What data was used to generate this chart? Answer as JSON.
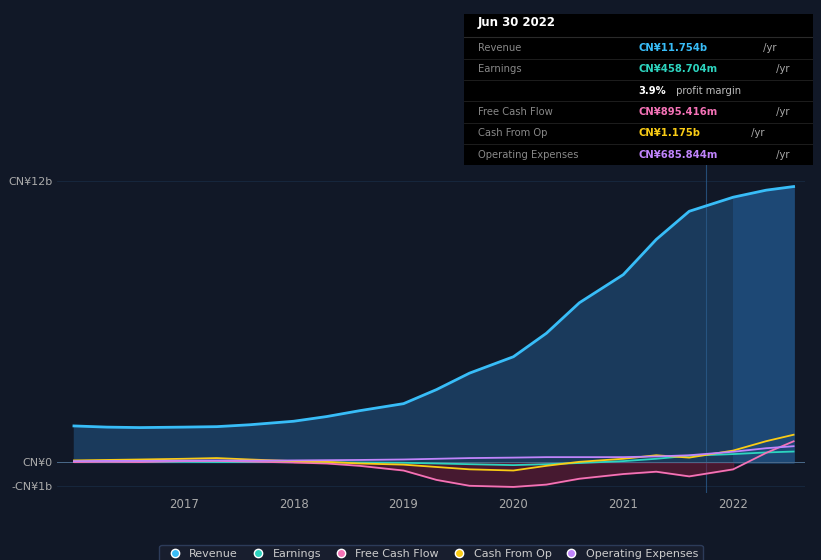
{
  "bg_color": "#111827",
  "plot_bg_color": "#111827",
  "ylim": [
    -1300000000.0,
    13500000000.0
  ],
  "xlabel_ticks": [
    2017,
    2018,
    2019,
    2020,
    2021,
    2022
  ],
  "line_colors": {
    "Revenue": "#38bdf8",
    "Earnings": "#2dd4bf",
    "Free Cash Flow": "#f472b6",
    "Cash From Op": "#facc15",
    "Operating Expenses": "#c084fc"
  },
  "legend_items": [
    {
      "label": "Revenue",
      "color": "#38bdf8"
    },
    {
      "label": "Earnings",
      "color": "#2dd4bf"
    },
    {
      "label": "Free Cash Flow",
      "color": "#f472b6"
    },
    {
      "label": "Cash From Op",
      "color": "#facc15"
    },
    {
      "label": "Operating Expenses",
      "color": "#c084fc"
    }
  ],
  "revenue_x": [
    2016.0,
    2016.3,
    2016.6,
    2017.0,
    2017.3,
    2017.6,
    2018.0,
    2018.3,
    2018.6,
    2019.0,
    2019.3,
    2019.6,
    2020.0,
    2020.3,
    2020.6,
    2021.0,
    2021.3,
    2021.6,
    2022.0,
    2022.3,
    2022.55
  ],
  "revenue_y": [
    1550000000.0,
    1500000000.0,
    1480000000.0,
    1500000000.0,
    1520000000.0,
    1600000000.0,
    1750000000.0,
    1950000000.0,
    2200000000.0,
    2500000000.0,
    3100000000.0,
    3800000000.0,
    4500000000.0,
    5500000000.0,
    6800000000.0,
    8000000000.0,
    9500000000.0,
    10700000000.0,
    11300000000.0,
    11600000000.0,
    11754000000.0
  ],
  "earnings_x": [
    2016.0,
    2016.3,
    2016.6,
    2017.0,
    2017.3,
    2017.6,
    2018.0,
    2018.3,
    2018.6,
    2019.0,
    2019.3,
    2019.6,
    2020.0,
    2020.3,
    2020.6,
    2021.0,
    2021.3,
    2021.6,
    2022.0,
    2022.3,
    2022.55
  ],
  "earnings_y": [
    30000000.0,
    20000000.0,
    20000000.0,
    20000000.0,
    10000000.0,
    10000000.0,
    20000000.0,
    0.0,
    -10000000.0,
    -20000000.0,
    -50000000.0,
    -80000000.0,
    -120000000.0,
    -80000000.0,
    -30000000.0,
    50000000.0,
    150000000.0,
    280000000.0,
    350000000.0,
    420000000.0,
    458700000.0
  ],
  "fcf_x": [
    2016.0,
    2016.3,
    2016.6,
    2017.0,
    2017.3,
    2017.6,
    2018.0,
    2018.3,
    2018.6,
    2019.0,
    2019.3,
    2019.6,
    2020.0,
    2020.3,
    2020.6,
    2021.0,
    2021.3,
    2021.6,
    2022.0,
    2022.3,
    2022.55
  ],
  "fcf_y": [
    10000000.0,
    20000000.0,
    10000000.0,
    50000000.0,
    60000000.0,
    30000000.0,
    -10000000.0,
    -50000000.0,
    -150000000.0,
    -350000000.0,
    -750000000.0,
    -1000000000.0,
    -1050000000.0,
    -950000000.0,
    -700000000.0,
    -500000000.0,
    -400000000.0,
    -600000000.0,
    -300000000.0,
    400000000.0,
    895000000.0
  ],
  "cashfromop_x": [
    2016.0,
    2016.3,
    2016.6,
    2017.0,
    2017.3,
    2017.6,
    2018.0,
    2018.3,
    2018.6,
    2019.0,
    2019.3,
    2019.6,
    2020.0,
    2020.3,
    2020.6,
    2021.0,
    2021.3,
    2021.6,
    2022.0,
    2022.3,
    2022.55
  ],
  "cashfromop_y": [
    80000000.0,
    100000000.0,
    120000000.0,
    150000000.0,
    180000000.0,
    120000000.0,
    50000000.0,
    20000000.0,
    -50000000.0,
    -100000000.0,
    -200000000.0,
    -300000000.0,
    -350000000.0,
    -150000000.0,
    20000000.0,
    150000000.0,
    300000000.0,
    200000000.0,
    500000000.0,
    900000000.0,
    1175000000.0
  ],
  "opex_x": [
    2016.0,
    2016.3,
    2016.6,
    2017.0,
    2017.3,
    2017.6,
    2018.0,
    2018.3,
    2018.6,
    2019.0,
    2019.3,
    2019.6,
    2020.0,
    2020.3,
    2020.6,
    2021.0,
    2021.3,
    2021.6,
    2022.0,
    2022.3,
    2022.55
  ],
  "opex_y": [
    50000000.0,
    60000000.0,
    60000000.0,
    70000000.0,
    80000000.0,
    70000000.0,
    80000000.0,
    90000000.0,
    100000000.0,
    120000000.0,
    150000000.0,
    180000000.0,
    200000000.0,
    220000000.0,
    220000000.0,
    220000000.0,
    250000000.0,
    300000000.0,
    450000000.0,
    600000000.0,
    686000000.0
  ],
  "shade_x_start": 2021.75,
  "x_min": 2015.85,
  "x_max": 2022.65,
  "table": {
    "title": "Jun 30 2022",
    "rows": [
      {
        "label": "Revenue",
        "value": "CN¥11.754b /yr",
        "value_color": "#38bdf8"
      },
      {
        "label": "Earnings",
        "value": "CN¥458.704m /yr",
        "value_color": "#2dd4bf"
      },
      {
        "label": "",
        "value": "3.9% profit margin",
        "value_color": "#ffffff",
        "bold_prefix": "3.9%"
      },
      {
        "label": "Free Cash Flow",
        "value": "CN¥895.416m /yr",
        "value_color": "#f472b6"
      },
      {
        "label": "Cash From Op",
        "value": "CN¥1.175b /yr",
        "value_color": "#facc15"
      },
      {
        "label": "Operating Expenses",
        "value": "CN¥685.844m /yr",
        "value_color": "#c084fc"
      }
    ]
  }
}
